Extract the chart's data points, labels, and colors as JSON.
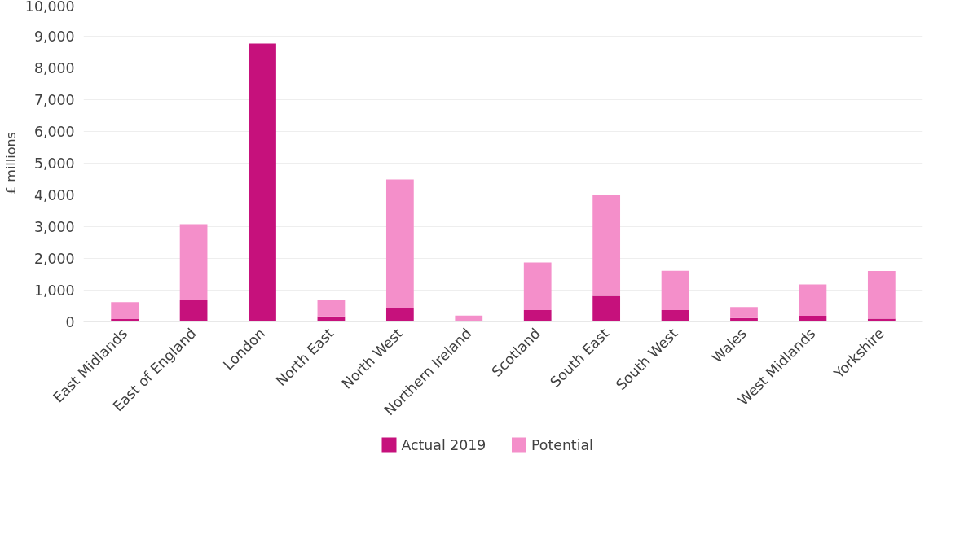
{
  "chart_data": {
    "type": "bar",
    "stacked": true,
    "ylabel": "£ millions",
    "categories": [
      "East Midlands",
      "East of England",
      "London",
      "North East",
      "North West",
      "Northern Ireland",
      "Scotland",
      "South East",
      "South West",
      "Wales",
      "West Midlands",
      "Yorkshire"
    ],
    "series": [
      {
        "name": "Actual 2019",
        "color": "#c6117c",
        "values": [
          90,
          690,
          8770,
          170,
          450,
          0,
          370,
          820,
          370,
          120,
          190,
          100
        ]
      },
      {
        "name": "Potential",
        "color": "#f48fca",
        "values": [
          530,
          2390,
          0,
          510,
          4040,
          200,
          1500,
          3180,
          1240,
          350,
          990,
          1500
        ]
      }
    ],
    "ylim": [
      0,
      10000
    ],
    "yticks": [
      {
        "value": 0,
        "label": "0"
      },
      {
        "value": 1000,
        "label": "1,000"
      },
      {
        "value": 2000,
        "label": "2,000"
      },
      {
        "value": 3000,
        "label": "3,000"
      },
      {
        "value": 4000,
        "label": "4,000"
      },
      {
        "value": 5000,
        "label": "5,000"
      },
      {
        "value": 6000,
        "label": "6,000"
      },
      {
        "value": 7000,
        "label": "7,000"
      },
      {
        "value": 8000,
        "label": "8,000"
      },
      {
        "value": 9000,
        "label": "9,000"
      },
      {
        "value": 10000,
        "label": "10,000"
      }
    ],
    "grid": "y",
    "legend": "bottom"
  }
}
